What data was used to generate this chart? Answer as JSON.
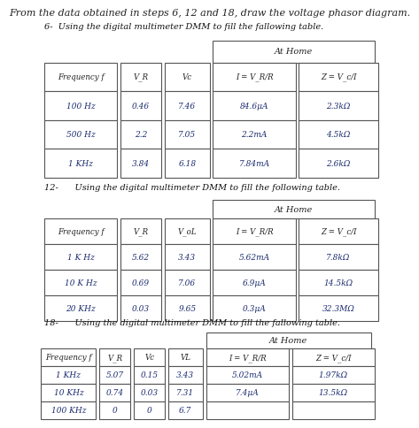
{
  "title": "From the data obtained in steps 6, 12 and 18, draw the voltage phasor diagram.",
  "section1": {
    "header": "6-  Using the digital multimeter DMM to fill the fallowing table.",
    "at_home": "At Home",
    "col_headers": [
      "Frequency f",
      "V_R",
      "Vc",
      "I = V_R/R",
      "Z = V_c/I"
    ],
    "rows": [
      [
        "100 Hz",
        "0.46",
        "7.46",
        "84.6μA",
        "2.3kΩ"
      ],
      [
        "500 Hz",
        "2.2",
        "7.05",
        "2.2mA",
        "4.5kΩ"
      ],
      [
        "1 KHz",
        "3.84",
        "6.18",
        "7.84mA",
        "2.6kΩ"
      ]
    ],
    "bg": "#b8cce4",
    "table_bg": "#dce6f1"
  },
  "section2": {
    "header": "12-      Using the digital multimeter DMM to fill the following table.",
    "at_home": "At Home",
    "col_headers": [
      "Frequency f",
      "V_R",
      "V_oL",
      "I = V_R/R",
      "Z = V_c/I"
    ],
    "rows": [
      [
        "1 K Hz",
        "5.62",
        "3.43",
        "5.62mA",
        "7.8kΩ"
      ],
      [
        "10 K Hz",
        "0.69",
        "7.06",
        "6.9μA",
        "14.5kΩ"
      ],
      [
        "20 KHz",
        "0.03",
        "9.65",
        "0.3μA",
        "32.3MΩ"
      ]
    ],
    "bg": "#e8e8e8",
    "table_bg": "#f0f0f0"
  },
  "section3": {
    "header": "18-      Using the digital multimeter DMM to fill the fallowing table.",
    "at_home": "At Home",
    "col_headers": [
      "Frequency f",
      "V_R",
      "Vc",
      "VL",
      "I = V_R/R",
      "Z = V_c/I"
    ],
    "rows": [
      [
        "1 KHz",
        "5.07",
        "0.15",
        "3.43",
        "5.02mA",
        "1.97kΩ"
      ],
      [
        "10 KHz",
        "0.74",
        "0.03",
        "7.31",
        "7.4μA",
        "13.5kΩ"
      ],
      [
        "100 KHz",
        "0",
        "0",
        "6.7",
        "",
        ""
      ]
    ],
    "bg": "#e8e8e8",
    "table_bg": "#f0f0f0"
  },
  "col_label_map": {
    "V_R": "V_R",
    "V_oL": "V_oL",
    "I = V_R/R": "I = V_R/R",
    "Z = V_c/I": "Z = V_c/I"
  },
  "ink_color": "#1a2a6e",
  "header_color": "#111111"
}
